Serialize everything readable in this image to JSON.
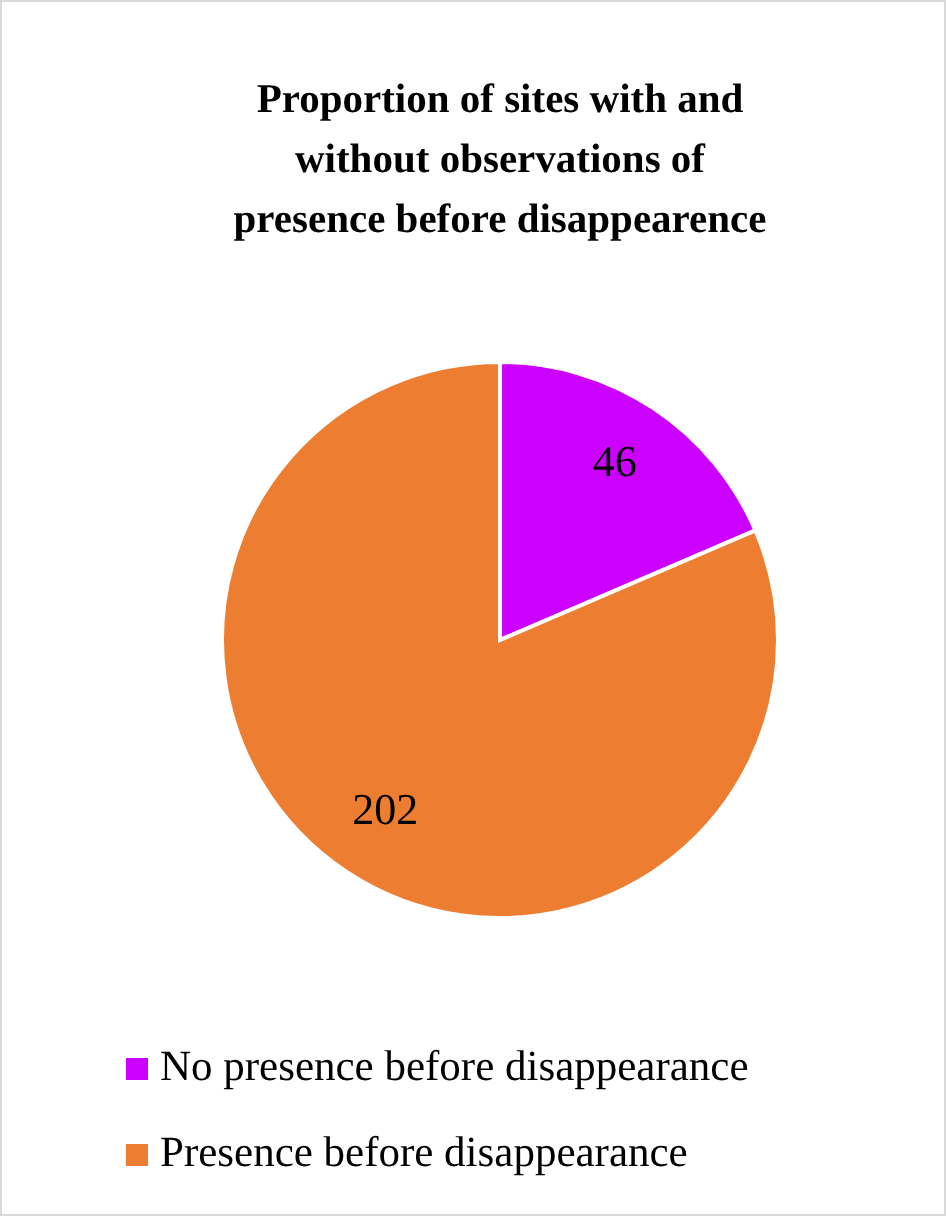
{
  "chart_data": {
    "type": "pie",
    "title": "Proportion of sites with and without observations of presence before disappearence",
    "categories": [
      "No presence before disappearance",
      "Presence before disappearance"
    ],
    "values": [
      46,
      202
    ],
    "colors": [
      "#cc00ff",
      "#ed7d31"
    ],
    "data_labels": true,
    "legend": "bottom"
  }
}
